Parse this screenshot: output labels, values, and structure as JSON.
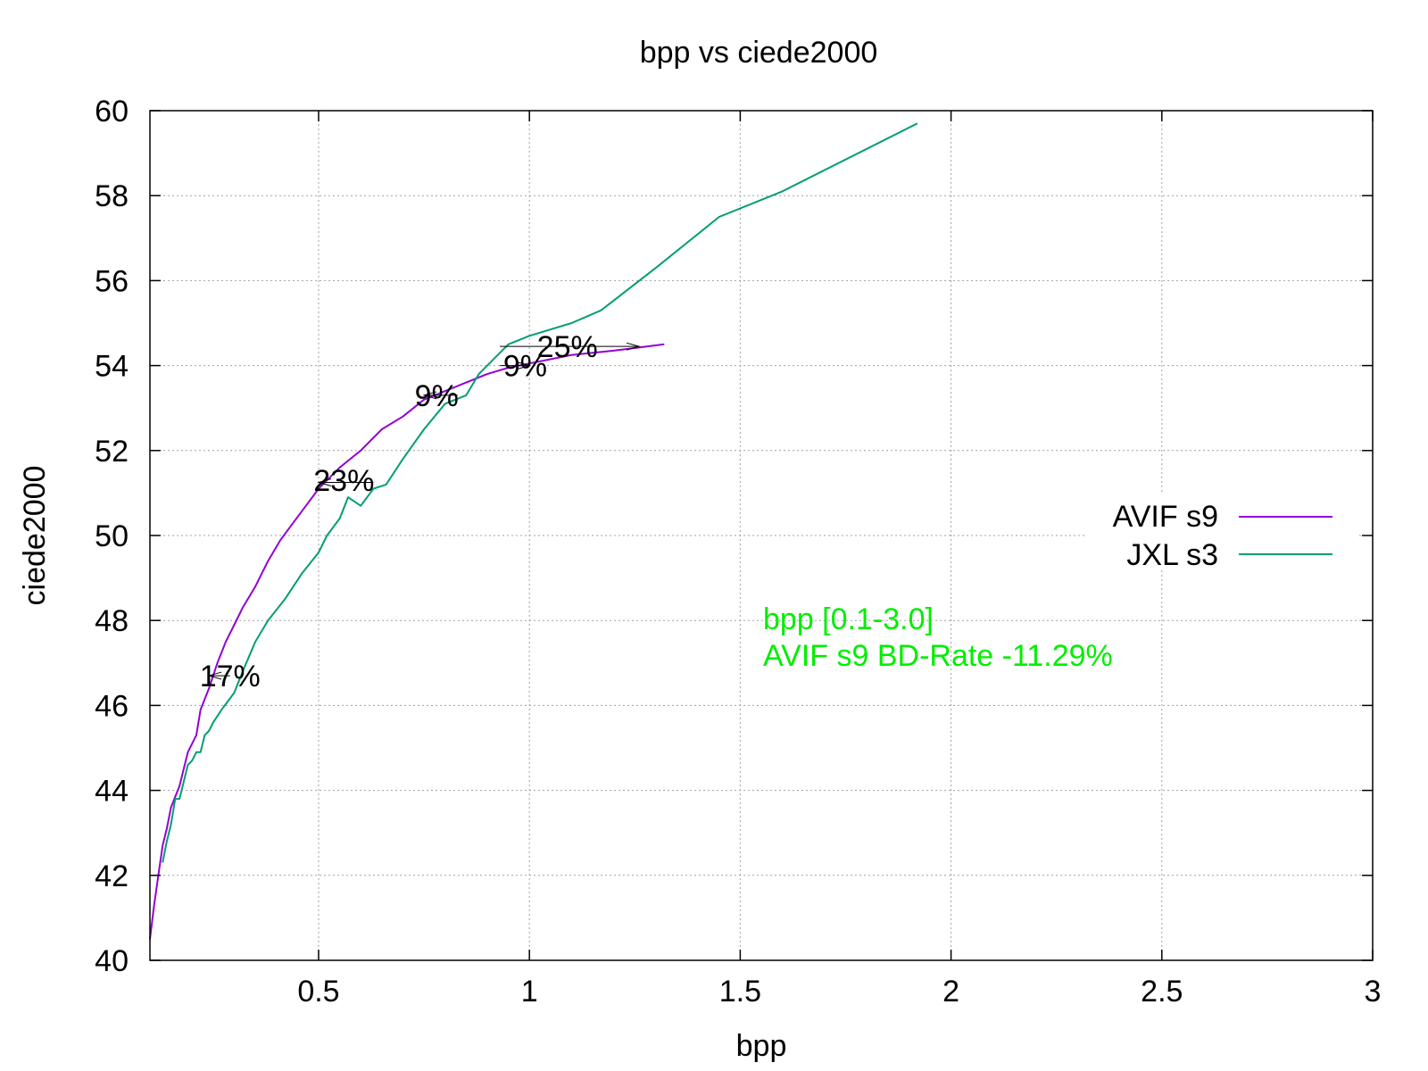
{
  "chart_data": {
    "type": "line",
    "title": "bpp vs ciede2000",
    "xlabel": "bpp",
    "ylabel": "ciede2000",
    "xlim": [
      0.1,
      3.0
    ],
    "ylim": [
      40,
      60
    ],
    "xticks": [
      0.5,
      1,
      1.5,
      2,
      2.5,
      3
    ],
    "xtick_labels": [
      "0.5",
      "1",
      "1.5",
      "2",
      "2.5",
      "3"
    ],
    "yticks": [
      40,
      42,
      44,
      46,
      48,
      50,
      52,
      54,
      56,
      58,
      60
    ],
    "ytick_labels": [
      "40",
      "42",
      "44",
      "46",
      "48",
      "50",
      "52",
      "54",
      "56",
      "58",
      "60"
    ],
    "grid": true,
    "legend_position": "right",
    "series": [
      {
        "name": "AVIF s9",
        "color": "#9400d3",
        "points": [
          [
            0.1,
            40.5
          ],
          [
            0.11,
            41.3
          ],
          [
            0.12,
            42.0
          ],
          [
            0.13,
            42.7
          ],
          [
            0.14,
            43.1
          ],
          [
            0.15,
            43.6
          ],
          [
            0.17,
            44.1
          ],
          [
            0.19,
            44.9
          ],
          [
            0.21,
            45.3
          ],
          [
            0.22,
            45.9
          ],
          [
            0.24,
            46.4
          ],
          [
            0.26,
            47.0
          ],
          [
            0.28,
            47.5
          ],
          [
            0.3,
            47.9
          ],
          [
            0.32,
            48.3
          ],
          [
            0.35,
            48.8
          ],
          [
            0.38,
            49.4
          ],
          [
            0.41,
            49.9
          ],
          [
            0.44,
            50.3
          ],
          [
            0.47,
            50.7
          ],
          [
            0.5,
            51.1
          ],
          [
            0.55,
            51.6
          ],
          [
            0.6,
            52.0
          ],
          [
            0.65,
            52.5
          ],
          [
            0.7,
            52.8
          ],
          [
            0.75,
            53.2
          ],
          [
            0.8,
            53.4
          ],
          [
            0.85,
            53.6
          ],
          [
            0.9,
            53.8
          ],
          [
            0.95,
            53.95
          ],
          [
            1.0,
            54.05
          ],
          [
            1.05,
            54.15
          ],
          [
            1.1,
            54.25
          ],
          [
            1.2,
            54.35
          ],
          [
            1.32,
            54.5
          ]
        ]
      },
      {
        "name": "JXL s3",
        "color": "#009e73",
        "points": [
          [
            0.13,
            42.3
          ],
          [
            0.14,
            42.8
          ],
          [
            0.15,
            43.2
          ],
          [
            0.16,
            43.8
          ],
          [
            0.17,
            43.8
          ],
          [
            0.18,
            44.2
          ],
          [
            0.19,
            44.6
          ],
          [
            0.2,
            44.7
          ],
          [
            0.21,
            44.9
          ],
          [
            0.22,
            44.9
          ],
          [
            0.23,
            45.3
          ],
          [
            0.24,
            45.4
          ],
          [
            0.25,
            45.6
          ],
          [
            0.27,
            45.9
          ],
          [
            0.3,
            46.3
          ],
          [
            0.32,
            46.8
          ],
          [
            0.35,
            47.5
          ],
          [
            0.38,
            48.0
          ],
          [
            0.42,
            48.5
          ],
          [
            0.46,
            49.1
          ],
          [
            0.5,
            49.6
          ],
          [
            0.52,
            50.0
          ],
          [
            0.55,
            50.4
          ],
          [
            0.57,
            50.9
          ],
          [
            0.6,
            50.7
          ],
          [
            0.63,
            51.1
          ],
          [
            0.66,
            51.2
          ],
          [
            0.7,
            51.8
          ],
          [
            0.75,
            52.5
          ],
          [
            0.8,
            53.1
          ],
          [
            0.85,
            53.3
          ],
          [
            0.88,
            53.8
          ],
          [
            0.92,
            54.2
          ],
          [
            0.95,
            54.5
          ],
          [
            1.0,
            54.7
          ],
          [
            1.1,
            55.0
          ],
          [
            1.17,
            55.3
          ],
          [
            1.3,
            56.3
          ],
          [
            1.45,
            57.5
          ],
          [
            1.6,
            58.1
          ],
          [
            1.92,
            59.7
          ]
        ]
      }
    ],
    "annotations": [
      {
        "text": "17%",
        "x": 0.29,
        "y": 46.7,
        "arrow_from": [
          0.29,
          46.7
        ],
        "arrow_to": [
          0.24,
          46.7
        ]
      },
      {
        "text": "23%",
        "x": 0.56,
        "y": 51.3,
        "arrow_from": [
          0.63,
          51.25
        ],
        "arrow_to": [
          0.5,
          51.25
        ]
      },
      {
        "text": "9%",
        "x": 0.78,
        "y": 53.3,
        "arrow_from": [
          0.83,
          53.3
        ],
        "arrow_to": [
          0.75,
          53.3
        ]
      },
      {
        "text": "9%",
        "x": 0.99,
        "y": 54.0,
        "arrow_from": [
          0.93,
          54.0
        ],
        "arrow_to": [
          1.0,
          54.0
        ]
      },
      {
        "text": "25%",
        "x": 1.09,
        "y": 54.45,
        "arrow_from": [
          0.93,
          54.45
        ],
        "arrow_to": [
          1.26,
          54.45
        ]
      }
    ],
    "text_box": {
      "color": "#00ee00",
      "lines": [
        "bpp [0.1-3.0]",
        "AVIF s9 BD-Rate -11.29%"
      ]
    }
  }
}
